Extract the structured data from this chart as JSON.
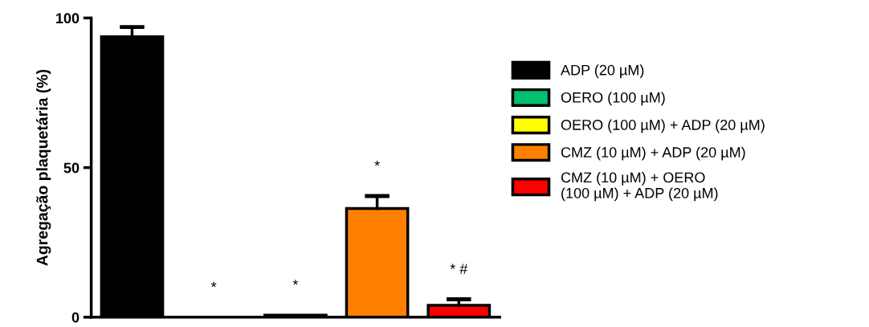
{
  "chart_data": {
    "type": "bar",
    "ylabel": "Agregação plaquetária (%)",
    "categories": [
      null,
      null,
      null,
      null,
      null
    ],
    "ylim": [
      0,
      100
    ],
    "yticks": [
      0,
      50,
      100
    ],
    "grid": false,
    "legend": "right",
    "series": [
      {
        "name": "ADP (20 µM)",
        "color": "#000000",
        "values": [
          93.7,
          null,
          null,
          null,
          null
        ],
        "errors": [
          [
            93.7,
            97
          ],
          null,
          null,
          null,
          null
        ]
      },
      {
        "name": "OERO (100 µM)",
        "color": "#00c070",
        "values": [
          null,
          0,
          null,
          null,
          null
        ],
        "value_labels": [
          null,
          "*",
          null,
          null,
          null
        ]
      },
      {
        "name": "OERO (100 µM) + ADP (20 µM)",
        "color": "#ffff00",
        "values": [
          null,
          null,
          0.7,
          null,
          null
        ],
        "value_labels": [
          null,
          null,
          "*",
          null,
          null
        ]
      },
      {
        "name": "CMZ (10 µM) + ADP (20 µM)",
        "color": "#ff8000",
        "values": [
          null,
          null,
          null,
          36.3,
          null
        ],
        "errors": [
          null,
          null,
          null,
          [
            36.3,
            40.5
          ],
          null
        ],
        "value_labels": [
          null,
          null,
          null,
          "*",
          null
        ]
      },
      {
        "name": "CMZ (10 µM) + OERO\n(100 µM) + ADP (20 µM)",
        "color": "#ff0000",
        "values": [
          null,
          null,
          null,
          null,
          4
        ],
        "errors": [
          null,
          null,
          null,
          null,
          [
            4,
            6
          ]
        ],
        "value_labels": [
          null,
          null,
          null,
          null,
          "* #"
        ]
      }
    ]
  }
}
